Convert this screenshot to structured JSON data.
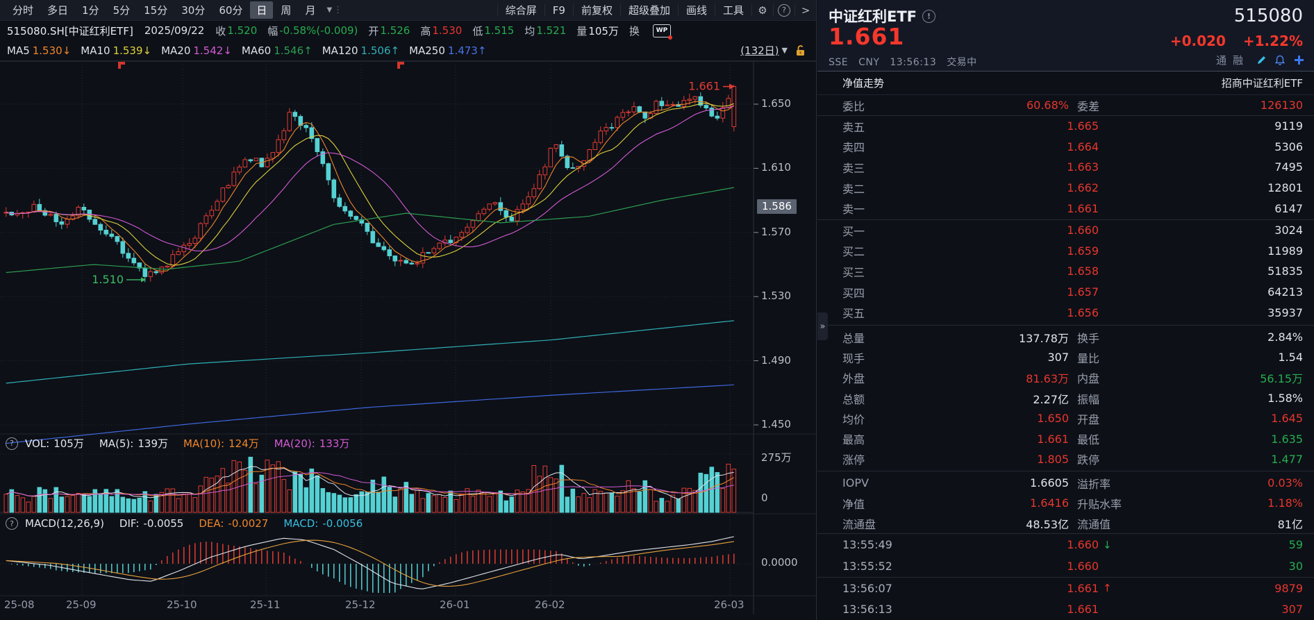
{
  "toolbar": {
    "tabs": [
      "分时",
      "多日",
      "1分",
      "5分",
      "15分",
      "30分",
      "60分",
      "日",
      "周",
      "月"
    ],
    "active_tab": "日",
    "menu": [
      "综合屏",
      "F9",
      "前复权",
      "超级叠加",
      "画线",
      "工具"
    ]
  },
  "info_bar": {
    "symbol": "515080.SH[中证红利ETF]",
    "date": "2025/09/22",
    "fields": [
      {
        "label": "收",
        "value": "1.520",
        "color": "green"
      },
      {
        "label": "幅",
        "value": "-0.58%(-0.009)",
        "color": "green"
      },
      {
        "label": "开",
        "value": "1.526",
        "color": "green"
      },
      {
        "label": "高",
        "value": "1.530",
        "color": "red"
      },
      {
        "label": "低",
        "value": "1.515",
        "color": "green"
      },
      {
        "label": "均",
        "value": "1.521",
        "color": "green"
      },
      {
        "label": "量",
        "value": "105万",
        "color": "white"
      },
      {
        "label": "换",
        "value": "",
        "color": "white"
      }
    ]
  },
  "ma_bar": {
    "items": [
      {
        "label": "MA5",
        "value": "1.530",
        "arrow": "↓",
        "color": "orange"
      },
      {
        "label": "MA10",
        "value": "1.539",
        "arrow": "↓",
        "color": "yellow"
      },
      {
        "label": "MA20",
        "value": "1.542",
        "arrow": "↓",
        "color": "magenta"
      },
      {
        "label": "MA60",
        "value": "1.546",
        "arrow": "↑",
        "color": "green2"
      },
      {
        "label": "MA120",
        "value": "1.506",
        "arrow": "↑",
        "color": "teal"
      },
      {
        "label": "MA250",
        "value": "1.473",
        "arrow": "↑",
        "color": "blue"
      }
    ],
    "range_label": "(132日)"
  },
  "vol_header": {
    "vol_label": "VOL:",
    "vol_value": "105万",
    "ma5_label": "MA(5):",
    "ma5_value": "139万",
    "ma10_label": "MA(10):",
    "ma10_value": "124万",
    "ma20_label": "MA(20):",
    "ma20_value": "133万"
  },
  "macd_header": {
    "title": "MACD(12,26,9)",
    "dif_label": "DIF:",
    "dif_value": "-0.0055",
    "dea_label": "DEA:",
    "dea_value": "-0.0027",
    "macd_label": "MACD:",
    "macd_value": "-0.0056"
  },
  "chart_data": {
    "type": "candlestick",
    "period": "日",
    "visible_bars": 132,
    "y_axis_labels": [
      "1.650",
      "1.610",
      "1.570",
      "1.530",
      "1.490",
      "1.450"
    ],
    "prev_close_label": "1.586",
    "high_annotation": "1.661",
    "low_annotation": "1.510",
    "vol_axis_max": "275万",
    "vol_axis_min": "0",
    "macd_zero_label": "0.0000",
    "x_axis": [
      "25-08",
      "25-09",
      "25-10",
      "25-11",
      "25-12",
      "26-01",
      "26-02",
      "26-03"
    ],
    "x_label_pos": [
      6,
      95,
      240,
      360,
      497,
      633,
      770,
      1028
    ],
    "month_tick_x": [
      118,
      263,
      383,
      520,
      656,
      793,
      1051
    ],
    "price_anchors": [
      [
        0,
        1.582
      ],
      [
        0.045,
        1.586
      ],
      [
        0.075,
        1.576
      ],
      [
        0.105,
        1.585
      ],
      [
        0.13,
        1.572
      ],
      [
        0.16,
        1.559
      ],
      [
        0.18,
        1.548
      ],
      [
        0.195,
        1.542
      ],
      [
        0.215,
        1.549
      ],
      [
        0.24,
        1.558
      ],
      [
        0.26,
        1.568
      ],
      [
        0.28,
        1.583
      ],
      [
        0.3,
        1.598
      ],
      [
        0.32,
        1.612
      ],
      [
        0.335,
        1.617
      ],
      [
        0.35,
        1.612
      ],
      [
        0.365,
        1.621
      ],
      [
        0.38,
        1.634
      ],
      [
        0.392,
        1.645
      ],
      [
        0.405,
        1.639
      ],
      [
        0.42,
        1.627
      ],
      [
        0.435,
        1.611
      ],
      [
        0.45,
        1.593
      ],
      [
        0.47,
        1.581
      ],
      [
        0.49,
        1.573
      ],
      [
        0.51,
        1.561
      ],
      [
        0.53,
        1.553
      ],
      [
        0.55,
        1.549
      ],
      [
        0.565,
        1.553
      ],
      [
        0.585,
        1.559
      ],
      [
        0.605,
        1.564
      ],
      [
        0.625,
        1.571
      ],
      [
        0.645,
        1.579
      ],
      [
        0.662,
        1.59
      ],
      [
        0.678,
        1.584
      ],
      [
        0.693,
        1.578
      ],
      [
        0.71,
        1.587
      ],
      [
        0.725,
        1.597
      ],
      [
        0.74,
        1.612
      ],
      [
        0.753,
        1.628
      ],
      [
        0.768,
        1.614
      ],
      [
        0.783,
        1.607
      ],
      [
        0.8,
        1.62
      ],
      [
        0.82,
        1.633
      ],
      [
        0.84,
        1.641
      ],
      [
        0.858,
        1.648
      ],
      [
        0.878,
        1.643
      ],
      [
        0.898,
        1.652
      ],
      [
        0.918,
        1.647
      ],
      [
        0.938,
        1.655
      ],
      [
        0.958,
        1.649
      ],
      [
        0.978,
        1.641
      ],
      [
        1,
        1.661
      ]
    ],
    "ma60_anchors": [
      [
        0,
        1.545
      ],
      [
        0.12,
        1.55
      ],
      [
        0.22,
        1.547
      ],
      [
        0.32,
        1.552
      ],
      [
        0.45,
        1.575
      ],
      [
        0.55,
        1.582
      ],
      [
        0.68,
        1.576
      ],
      [
        0.8,
        1.58
      ],
      [
        0.9,
        1.59
      ],
      [
        1,
        1.598
      ]
    ],
    "ma120_anchors": [
      [
        0,
        1.476
      ],
      [
        0.25,
        1.488
      ],
      [
        0.5,
        1.495
      ],
      [
        0.75,
        1.503
      ],
      [
        1,
        1.515
      ]
    ],
    "ma250_anchors": [
      [
        0,
        1.4385
      ],
      [
        0.25,
        1.4505
      ],
      [
        0.5,
        1.461
      ],
      [
        0.75,
        1.4685
      ],
      [
        1,
        1.475
      ]
    ],
    "dif_anchors": [
      [
        0,
        0.1
      ],
      [
        0.06,
        -0.05
      ],
      [
        0.12,
        -0.3
      ],
      [
        0.17,
        -0.5
      ],
      [
        0.2,
        -0.55
      ],
      [
        0.24,
        -0.2
      ],
      [
        0.28,
        0.2
      ],
      [
        0.33,
        0.55
      ],
      [
        0.38,
        0.8
      ],
      [
        0.41,
        0.75
      ],
      [
        0.45,
        0.45
      ],
      [
        0.49,
        -0.05
      ],
      [
        0.53,
        -0.6
      ],
      [
        0.57,
        -0.8
      ],
      [
        0.61,
        -0.6
      ],
      [
        0.65,
        -0.35
      ],
      [
        0.69,
        -0.1
      ],
      [
        0.73,
        0.15
      ],
      [
        0.76,
        0.3
      ],
      [
        0.79,
        0.15
      ],
      [
        0.82,
        0.25
      ],
      [
        0.86,
        0.4
      ],
      [
        0.9,
        0.5
      ],
      [
        0.94,
        0.6
      ],
      [
        0.97,
        0.7
      ],
      [
        1,
        0.85
      ]
    ],
    "colors": {
      "up": "#e23b32",
      "down": "#55d1d3",
      "ma5": "#f0862a",
      "ma10": "#ded23c",
      "ma20": "#d45ad4",
      "ma60": "#2d9e52",
      "ma120": "#2fb0b8",
      "ma250": "#3e68df",
      "dif": "#e2e6ec",
      "dea": "#e8a33d"
    }
  },
  "panel": {
    "name": "中证红利ETF",
    "code": "515080",
    "price": "1.661",
    "change": "+0.020",
    "change_pct": "+1.22%",
    "exchange": "SSE",
    "currency": "CNY",
    "time": "13:56:13",
    "status": "交易中",
    "tags": [
      "通",
      "融"
    ],
    "nav_tab": "净值走势",
    "fund_name": "招商中证红利ETF",
    "weibi_label": "委比",
    "weibi_value": "60.68%",
    "weicha_label": "委差",
    "weicha_value": "126130",
    "asks": [
      {
        "label": "卖五",
        "price": "1.665",
        "vol": "9119"
      },
      {
        "label": "卖四",
        "price": "1.664",
        "vol": "5306"
      },
      {
        "label": "卖三",
        "price": "1.663",
        "vol": "7495"
      },
      {
        "label": "卖二",
        "price": "1.662",
        "vol": "12801"
      },
      {
        "label": "卖一",
        "price": "1.661",
        "vol": "6147"
      }
    ],
    "bids": [
      {
        "label": "买一",
        "price": "1.660",
        "vol": "3024"
      },
      {
        "label": "买二",
        "price": "1.659",
        "vol": "11989"
      },
      {
        "label": "买三",
        "price": "1.658",
        "vol": "51835"
      },
      {
        "label": "买四",
        "price": "1.657",
        "vol": "64213"
      },
      {
        "label": "买五",
        "price": "1.656",
        "vol": "35937"
      }
    ],
    "stats1": [
      {
        "l1": "总量",
        "v1": "137.78万",
        "c1": "white",
        "l2": "换手",
        "v2": "2.84%",
        "c2": "white"
      },
      {
        "l1": "现手",
        "v1": "307",
        "c1": "white",
        "l2": "量比",
        "v2": "1.54",
        "c2": "white"
      },
      {
        "l1": "外盘",
        "v1": "81.63万",
        "c1": "red",
        "l2": "内盘",
        "v2": "56.15万",
        "c2": "green"
      },
      {
        "l1": "总额",
        "v1": "2.27亿",
        "c1": "white",
        "l2": "振幅",
        "v2": "1.58%",
        "c2": "white"
      },
      {
        "l1": "均价",
        "v1": "1.650",
        "c1": "red",
        "l2": "开盘",
        "v2": "1.645",
        "c2": "red"
      },
      {
        "l1": "最高",
        "v1": "1.661",
        "c1": "red",
        "l2": "最低",
        "v2": "1.635",
        "c2": "green"
      },
      {
        "l1": "涨停",
        "v1": "1.805",
        "c1": "red",
        "l2": "跌停",
        "v2": "1.477",
        "c2": "green"
      }
    ],
    "stats2": [
      {
        "l1": "IOPV",
        "v1": "1.6605",
        "c1": "white",
        "l2": "溢折率",
        "v2": "0.03%",
        "c2": "red"
      },
      {
        "l1": "净值",
        "v1": "1.6416",
        "c1": "red",
        "l2": "升贴水率",
        "v2": "1.18%",
        "c2": "red"
      },
      {
        "l1": "流通盘",
        "v1": "48.53亿",
        "c1": "white",
        "l2": "流通值",
        "v2": "81亿",
        "c2": "white"
      }
    ],
    "ticks": [
      {
        "time": "13:55:49",
        "price": "1.660",
        "arrow": "↓",
        "arrow_color": "green",
        "vol": "59",
        "vol_color": "green"
      },
      {
        "time": "13:55:52",
        "price": "1.660",
        "arrow": "",
        "arrow_color": "",
        "vol": "30",
        "vol_color": "green"
      },
      {
        "time": "13:56:07",
        "price": "1.661",
        "arrow": "↑",
        "arrow_color": "red",
        "vol": "9879",
        "vol_color": "red"
      },
      {
        "time": "13:56:13",
        "price": "1.661",
        "arrow": "",
        "arrow_color": "",
        "vol": "307",
        "vol_color": "red"
      }
    ]
  }
}
